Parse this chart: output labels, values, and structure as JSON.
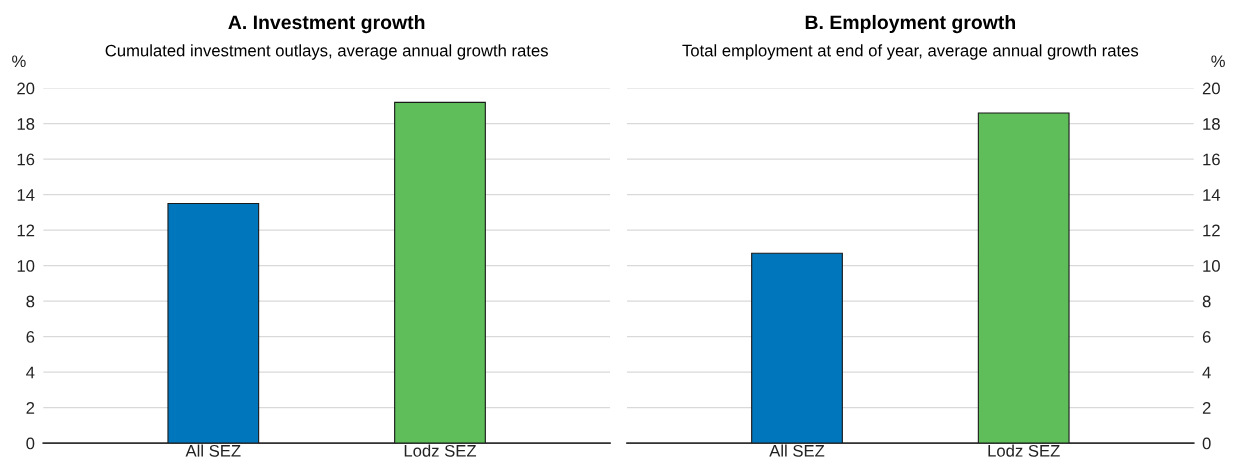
{
  "chart_data": [
    {
      "type": "bar",
      "title": "A. Investment growth",
      "subtitle": "Cumulated investment outlays, average annual growth rates",
      "ylabel": "%",
      "categories": [
        "All SEZ",
        "Lodz SEZ"
      ],
      "values": [
        13.5,
        19.2
      ],
      "colors": [
        "#0077bd",
        "#5fbd5a"
      ],
      "ylim": [
        0,
        20
      ],
      "yticks": [
        0,
        2,
        4,
        6,
        8,
        10,
        12,
        14,
        16,
        18,
        20
      ],
      "grid": "y"
    },
    {
      "type": "bar",
      "title": "B. Employment growth",
      "subtitle": "Total employment at end of year, average annual growth rates",
      "y2label": "%",
      "categories": [
        "All SEZ",
        "Lodz SEZ"
      ],
      "series": [
        {
          "axis": "y2",
          "colors": [
            "#0077bd",
            "#5fbd5a"
          ],
          "values": [
            10.7,
            18.6
          ]
        }
      ],
      "y2lim": [
        0,
        20
      ],
      "y2ticks": [
        0,
        2,
        4,
        6,
        8,
        10,
        12,
        14,
        16,
        18,
        20
      ],
      "grid": "y"
    }
  ]
}
